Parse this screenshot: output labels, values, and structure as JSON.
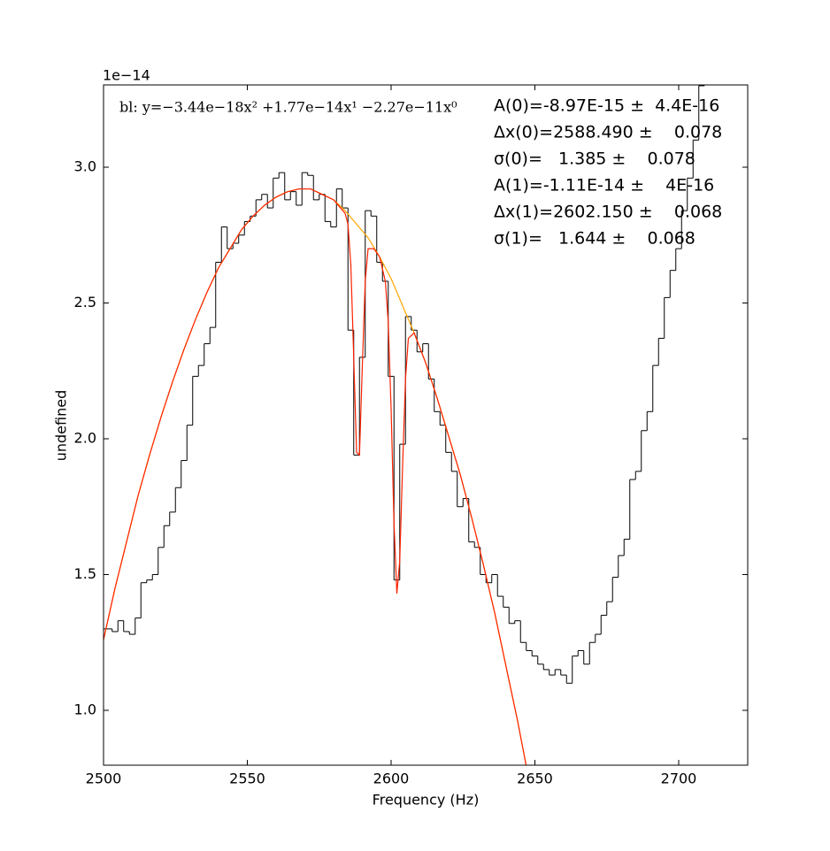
{
  "chart_data": {
    "type": "spectrum",
    "offset_label": "1e−14",
    "x_label": "Frequency (Hz)",
    "y_label": "undefined",
    "baseline_label": "bl: y=−3.44e−18x² +1.77e−14x¹ −2.27e−11x⁰",
    "fit_parameters": [
      "A(0)=-8.97E-15 ±  4.4E-16",
      "Δx(0)=2588.490 ±    0.078",
      "σ(0)=   1.385 ±    0.078",
      "A(1)=-1.11E-14 ±    4E-16",
      "Δx(1)=2602.150 ±    0.068",
      "σ(1)=   1.644 ±    0.068"
    ],
    "xlim": [
      2500,
      2724
    ],
    "ylim": [
      0.798,
      3.303
    ],
    "xticks": [
      2500,
      2550,
      2600,
      2650,
      2700
    ],
    "yticks": [
      {
        "value": 1,
        "label": "1.0"
      },
      {
        "value": 1.5,
        "label": "1.5"
      },
      {
        "value": 2,
        "label": "2.0"
      },
      {
        "value": 2.5,
        "label": "2.5"
      },
      {
        "value": 3,
        "label": "3.0"
      }
    ],
    "series": [
      {
        "name": "data",
        "style": "steps",
        "color": "#000000",
        "x": [
          2500,
          2502,
          2504,
          2506,
          2508,
          2510,
          2512,
          2514,
          2516,
          2518,
          2520,
          2522,
          2524,
          2526,
          2528,
          2530,
          2532,
          2534,
          2536,
          2538,
          2540,
          2542,
          2544,
          2546,
          2548,
          2550,
          2552,
          2554,
          2556,
          2558,
          2560,
          2562,
          2564,
          2566,
          2568,
          2570,
          2572,
          2574,
          2576,
          2578,
          2580,
          2582,
          2584,
          2586,
          2588,
          2590,
          2592,
          2594,
          2596,
          2598,
          2600,
          2602,
          2604,
          2606,
          2608,
          2610,
          2612,
          2614,
          2616,
          2618,
          2620,
          2622,
          2624,
          2626,
          2628,
          2630,
          2632,
          2634,
          2636,
          2638,
          2640,
          2642,
          2644,
          2646,
          2648,
          2650,
          2652,
          2654,
          2656,
          2658,
          2660,
          2662,
          2664,
          2666,
          2668,
          2670,
          2672,
          2674,
          2676,
          2678,
          2680,
          2682,
          2684,
          2686,
          2688,
          2690,
          2692,
          2694,
          2696,
          2698,
          2700,
          2702,
          2704,
          2706,
          2708
        ],
        "values": [
          1.3,
          1.3,
          1.29,
          1.33,
          1.29,
          1.28,
          1.34,
          1.47,
          1.48,
          1.5,
          1.6,
          1.68,
          1.73,
          1.82,
          1.92,
          2.05,
          2.23,
          2.27,
          2.35,
          2.41,
          2.65,
          2.78,
          2.7,
          2.72,
          2.75,
          2.8,
          2.82,
          2.88,
          2.9,
          2.85,
          2.96,
          2.98,
          2.88,
          2.91,
          2.86,
          2.98,
          2.97,
          2.88,
          2.9,
          2.8,
          2.78,
          2.92,
          2.85,
          2.4,
          1.94,
          2.3,
          2.84,
          2.82,
          2.65,
          2.58,
          2.23,
          1.48,
          1.98,
          2.45,
          2.4,
          2.32,
          2.35,
          2.22,
          2.1,
          2.05,
          1.95,
          1.88,
          1.75,
          1.78,
          1.62,
          1.6,
          1.5,
          1.47,
          1.5,
          1.42,
          1.38,
          1.32,
          1.33,
          1.25,
          1.22,
          1.2,
          1.17,
          1.15,
          1.13,
          1.15,
          1.13,
          1.1,
          1.2,
          1.22,
          1.17,
          1.25,
          1.28,
          1.35,
          1.4,
          1.49,
          1.57,
          1.63,
          1.85,
          1.88,
          2.03,
          2.1,
          2.27,
          2.37,
          2.52,
          2.62,
          2.7,
          2.84,
          2.96,
          3.1,
          3.3
        ]
      },
      {
        "name": "baseline",
        "style": "line",
        "color": "#ffa500",
        "x": [
          2500,
          2504,
          2508,
          2512,
          2516,
          2520,
          2524,
          2528,
          2532,
          2536,
          2540,
          2544,
          2548,
          2552,
          2556,
          2560,
          2564,
          2568,
          2572,
          2576,
          2580,
          2584,
          2588,
          2592,
          2596,
          2600,
          2604,
          2608,
          2612,
          2616,
          2620,
          2624,
          2628,
          2632,
          2636,
          2640,
          2644,
          2648
        ],
        "values": [
          1.26,
          1.45,
          1.62,
          1.79,
          1.94,
          2.08,
          2.21,
          2.33,
          2.44,
          2.54,
          2.63,
          2.7,
          2.77,
          2.82,
          2.86,
          2.89,
          2.91,
          2.92,
          2.92,
          2.9,
          2.88,
          2.84,
          2.79,
          2.74,
          2.67,
          2.59,
          2.49,
          2.39,
          2.28,
          2.15,
          2.01,
          1.87,
          1.71,
          1.54,
          1.36,
          1.16,
          0.96,
          0.74
        ]
      },
      {
        "name": "model",
        "style": "line",
        "color": "#ff2200",
        "x": [
          2500,
          2504,
          2508,
          2512,
          2516,
          2520,
          2524,
          2528,
          2532,
          2536,
          2540,
          2544,
          2548,
          2552,
          2556,
          2560,
          2564,
          2568,
          2572,
          2576,
          2580,
          2584,
          2585,
          2586,
          2587,
          2588,
          2589,
          2590,
          2591,
          2592,
          2594,
          2596,
          2598,
          2599,
          2600,
          2601,
          2602,
          2603,
          2604,
          2605,
          2606,
          2608,
          2612,
          2616,
          2620,
          2624,
          2628,
          2632,
          2636,
          2640,
          2644,
          2648
        ],
        "values": [
          1.26,
          1.45,
          1.62,
          1.79,
          1.94,
          2.08,
          2.21,
          2.33,
          2.44,
          2.54,
          2.63,
          2.7,
          2.77,
          2.82,
          2.86,
          2.89,
          2.91,
          2.92,
          2.92,
          2.9,
          2.88,
          2.83,
          2.79,
          2.64,
          2.3,
          1.95,
          1.94,
          2.27,
          2.58,
          2.7,
          2.7,
          2.67,
          2.58,
          2.43,
          2.11,
          1.69,
          1.43,
          1.55,
          1.9,
          2.22,
          2.37,
          2.39,
          2.28,
          2.15,
          2.01,
          1.87,
          1.71,
          1.54,
          1.36,
          1.16,
          0.96,
          0.74
        ]
      }
    ]
  }
}
